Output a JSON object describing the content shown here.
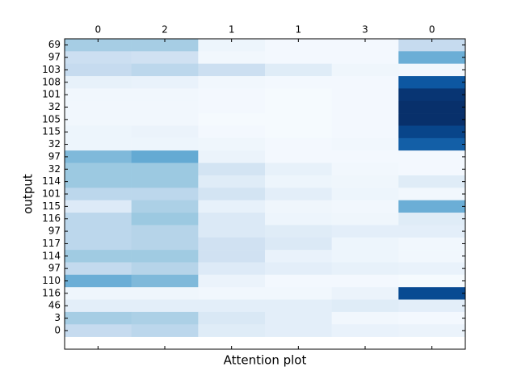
{
  "chart_data": {
    "type": "heatmap",
    "xlabel": "Attention plot",
    "ylabel": "output",
    "colormap": "Blues",
    "clim": [
      0,
      1
    ],
    "ylim": [
      24.5,
      -0.5
    ],
    "x_categories": [
      "0",
      "2",
      "1",
      "1",
      "3",
      "0"
    ],
    "y_categories": [
      "69",
      "97",
      "103",
      "108",
      "101",
      "32",
      "105",
      "115",
      "32",
      "97",
      "32",
      "114",
      "101",
      "115",
      "116",
      "97",
      "117",
      "114",
      "97",
      "110",
      "116",
      "46",
      "3",
      "0"
    ],
    "values": [
      [
        0.35,
        0.35,
        0.05,
        0.02,
        0.02,
        0.25
      ],
      [
        0.22,
        0.2,
        0.03,
        0.02,
        0.02,
        0.5
      ],
      [
        0.25,
        0.28,
        0.22,
        0.12,
        0.04,
        0.03
      ],
      [
        0.08,
        0.07,
        0.03,
        0.02,
        0.02,
        0.85
      ],
      [
        0.03,
        0.03,
        0.02,
        0.01,
        0.02,
        0.98
      ],
      [
        0.03,
        0.03,
        0.02,
        0.01,
        0.02,
        1.0
      ],
      [
        0.03,
        0.03,
        0.01,
        0.01,
        0.02,
        1.0
      ],
      [
        0.05,
        0.06,
        0.02,
        0.01,
        0.02,
        0.92
      ],
      [
        0.05,
        0.05,
        0.04,
        0.02,
        0.03,
        0.82
      ],
      [
        0.45,
        0.52,
        0.06,
        0.02,
        0.02,
        0.02
      ],
      [
        0.38,
        0.38,
        0.18,
        0.08,
        0.03,
        0.02
      ],
      [
        0.38,
        0.38,
        0.12,
        0.05,
        0.04,
        0.12
      ],
      [
        0.28,
        0.28,
        0.18,
        0.1,
        0.05,
        0.03
      ],
      [
        0.13,
        0.33,
        0.08,
        0.04,
        0.03,
        0.5
      ],
      [
        0.28,
        0.38,
        0.14,
        0.05,
        0.04,
        0.12
      ],
      [
        0.28,
        0.3,
        0.14,
        0.12,
        0.1,
        0.1
      ],
      [
        0.28,
        0.3,
        0.2,
        0.14,
        0.05,
        0.03
      ],
      [
        0.37,
        0.37,
        0.2,
        0.07,
        0.05,
        0.03
      ],
      [
        0.26,
        0.3,
        0.13,
        0.1,
        0.08,
        0.07
      ],
      [
        0.5,
        0.45,
        0.06,
        0.02,
        0.02,
        0.01
      ],
      [
        0.04,
        0.04,
        0.03,
        0.03,
        0.06,
        0.9
      ],
      [
        0.1,
        0.1,
        0.1,
        0.1,
        0.12,
        0.1
      ],
      [
        0.35,
        0.33,
        0.15,
        0.1,
        0.03,
        0.02
      ],
      [
        0.25,
        0.28,
        0.12,
        0.1,
        0.07,
        0.06
      ]
    ]
  }
}
